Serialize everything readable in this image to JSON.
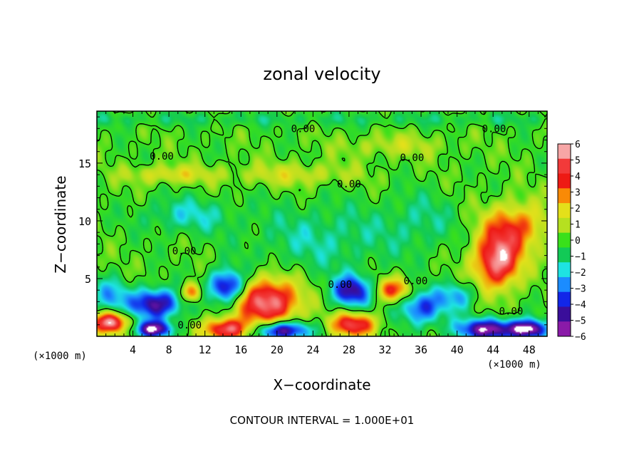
{
  "chart_data": {
    "type": "heatmap",
    "title": "zonal velocity",
    "xlabel": "X−coordinate",
    "ylabel": "Z−coordinate",
    "x_multiplier": "(×1000 m)",
    "y_multiplier": "(×1000 m)",
    "xlim": [
      0,
      50
    ],
    "ylim": [
      0,
      19.5
    ],
    "x_ticks": [
      4,
      8,
      12,
      16,
      20,
      24,
      28,
      32,
      36,
      40,
      44,
      48
    ],
    "x_tick_labels": [
      "4",
      "8",
      "12",
      "16",
      "20",
      "24",
      "28",
      "32",
      "36",
      "40",
      "44",
      "48"
    ],
    "y_ticks": [
      5,
      10,
      15
    ],
    "y_tick_labels": [
      "5",
      "10",
      "15"
    ],
    "colorbar": {
      "min": -6,
      "max": 6,
      "levels": [
        6,
        5,
        4,
        3,
        2,
        1,
        0,
        -1,
        -2,
        -3,
        -4,
        -5,
        -6
      ],
      "labels": [
        "6",
        "5",
        "4",
        "3",
        "2",
        "1",
        "0",
        "−1",
        "−2",
        "−3",
        "−4",
        "−5",
        "−6"
      ],
      "colors": [
        "#f7a6a6",
        "#f23a3a",
        "#ee1a14",
        "#f98a06",
        "#e4e01a",
        "#b6e020",
        "#39e01b",
        "#12ca56",
        "#1ee3e2",
        "#1b8cff",
        "#1226e8",
        "#3a0e9a",
        "#8a1aa8"
      ]
    },
    "contour_level_label": "0.00",
    "contour_labels": [
      {
        "text": "0.00",
        "x": 22.9,
        "z": 18.0
      },
      {
        "text": "0.00",
        "x": 44.1,
        "z": 18.0
      },
      {
        "text": "0.00",
        "x": 7.2,
        "z": 15.6
      },
      {
        "text": "0.00",
        "x": 35.0,
        "z": 15.5
      },
      {
        "text": "0.00",
        "x": 28.0,
        "z": 13.2
      },
      {
        "text": "0.00",
        "x": 9.7,
        "z": 7.4
      },
      {
        "text": "0.00",
        "x": 27.0,
        "z": 4.5
      },
      {
        "text": "0.00",
        "x": 35.4,
        "z": 4.8
      },
      {
        "text": "0.00",
        "x": 46.0,
        "z": 2.2
      },
      {
        "text": "0.00",
        "x": 10.3,
        "z": 1.0
      }
    ],
    "features": [
      {
        "x": 6.5,
        "z": 2.8,
        "u": -5.5,
        "rx": 2.8,
        "rz": 1.3
      },
      {
        "x": 14.5,
        "z": 4.3,
        "u": -5.5,
        "rx": 2.0,
        "rz": 1.4
      },
      {
        "x": 28.3,
        "z": 3.9,
        "u": -5.0,
        "rx": 2.2,
        "rz": 1.3
      },
      {
        "x": 19.0,
        "z": 3.0,
        "u": 6.0,
        "rx": 3.5,
        "rz": 2.0
      },
      {
        "x": 44.5,
        "z": 6.5,
        "u": 6.0,
        "rx": 2.5,
        "rz": 2.3
      },
      {
        "x": 46.5,
        "z": 9.5,
        "u": 3.5,
        "rx": 3.5,
        "rz": 2.0
      },
      {
        "x": 33.0,
        "z": 4.0,
        "u": 4.0,
        "rx": 2.0,
        "rz": 1.0
      },
      {
        "x": 10.5,
        "z": 3.8,
        "u": 3.5,
        "rx": 1.2,
        "rz": 0.8
      },
      {
        "x": 1.5,
        "z": 1.2,
        "u": 6.0,
        "rx": 2.0,
        "rz": 0.9
      },
      {
        "x": 6.3,
        "z": 0.6,
        "u": -6.0,
        "rx": 2.0,
        "rz": 0.7
      },
      {
        "x": 14.5,
        "z": 0.6,
        "u": 5.5,
        "rx": 2.5,
        "rz": 0.9
      },
      {
        "x": 20.5,
        "z": 0.5,
        "u": -6.0,
        "rx": 3.0,
        "rz": 0.8
      },
      {
        "x": 28.5,
        "z": 1.0,
        "u": 5.0,
        "rx": 2.5,
        "rz": 1.0
      },
      {
        "x": 36.0,
        "z": 2.5,
        "u": -4.0,
        "rx": 2.5,
        "rz": 1.5
      },
      {
        "x": 43.5,
        "z": 0.6,
        "u": -6.0,
        "rx": 3.5,
        "rz": 0.9
      },
      {
        "x": 48.0,
        "z": 0.6,
        "u": -6.0,
        "rx": 2.0,
        "rz": 0.8
      },
      {
        "x": 40.0,
        "z": 3.5,
        "u": -2.5,
        "rx": 2.0,
        "rz": 1.2
      },
      {
        "x": 1.5,
        "z": 3.5,
        "u": -2.5,
        "rx": 2.0,
        "rz": 1.5
      },
      {
        "x": 25.0,
        "z": 8.5,
        "u": -1.5,
        "rx": 8.0,
        "rz": 3.0
      },
      {
        "x": 10.0,
        "z": 10.5,
        "u": -1.8,
        "rx": 5.0,
        "rz": 1.5
      },
      {
        "x": 8.0,
        "z": 14.0,
        "u": 1.8,
        "rx": 5.0,
        "rz": 0.8
      },
      {
        "x": 22.0,
        "z": 14.0,
        "u": 1.5,
        "rx": 7.0,
        "rz": 1.0
      },
      {
        "x": 33.0,
        "z": 16.5,
        "u": 1.2,
        "rx": 6.0,
        "rz": 1.0
      },
      {
        "x": 36.0,
        "z": 10.0,
        "u": -1.2,
        "rx": 4.0,
        "rz": 2.5
      }
    ],
    "footer_text": "CONTOUR INTERVAL = 1.000E+01"
  }
}
